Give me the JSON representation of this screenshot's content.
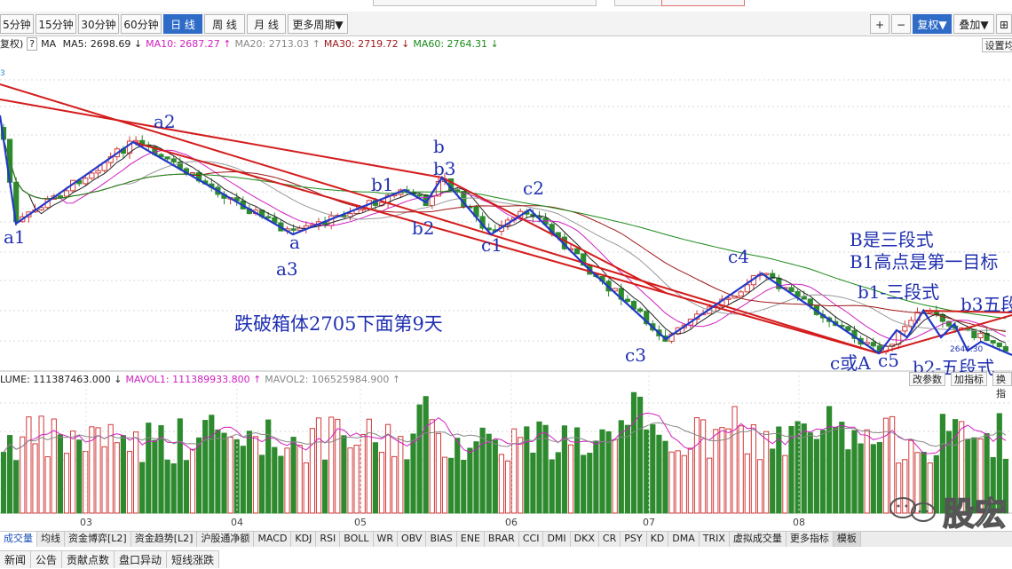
{
  "toolbar": {
    "periods": [
      "5分钟",
      "15分钟",
      "30分钟",
      "60分钟",
      "日 线",
      "周 线",
      "月 线",
      "更多周期▼"
    ],
    "active_period": "日 线",
    "right_buttons": [
      "+",
      "−",
      "复权▼",
      "叠加▼",
      "⊞"
    ]
  },
  "ma_legend": {
    "prefix": "复权)",
    "help": "?",
    "ma_label": "MA",
    "items": [
      {
        "text": "MA5: 2698.69",
        "arrow": "↓",
        "color": "#222222"
      },
      {
        "text": "MA10: 2687.27",
        "arrow": "↑",
        "color": "#d020c0"
      },
      {
        "text": "MA20: 2713.03",
        "arrow": "↑",
        "color": "#888888"
      },
      {
        "text": "MA30: 2719.72",
        "arrow": "↓",
        "color": "#a01818"
      },
      {
        "text": "MA60: 2764.31",
        "arrow": "↓",
        "color": "#1a8a1a"
      }
    ],
    "settings": "设置均"
  },
  "vol_legend": {
    "items": [
      {
        "text": "LUME: 111387463.000",
        "arrow": "↓",
        "color": "#222222"
      },
      {
        "text": "MAVOL1: 111389933.800",
        "arrow": "↑",
        "color": "#d020c0"
      },
      {
        "text": "MAVOL2: 106525984.900",
        "arrow": "↑",
        "color": "#888888"
      }
    ],
    "buttons": [
      "改参数",
      "加指标",
      "换指"
    ]
  },
  "x_axis_months": [
    "03",
    "04",
    "05",
    "06",
    "07",
    "08"
  ],
  "annotations": {
    "a1": "a1",
    "a2": "a2",
    "a": "a",
    "a3": "a3",
    "b1": "b1",
    "b": "b",
    "b3": "b3",
    "b2": "b2",
    "c1": "c1",
    "c2": "c2",
    "c3": "c3",
    "c4": "c4",
    "cA": "c或A",
    "c5": "c5",
    "box_note": "跌破箱体2705下面第9天",
    "note1": "B是三段式",
    "note2": "B1高点是第一目标",
    "note3": "b1-三段式",
    "note4": "b3五段",
    "note5": "b2-五段式",
    "small_price": "2644.30",
    "corner_num": "3"
  },
  "indicator_tabs": [
    "成交量",
    "均线",
    "资金博弈[L2]",
    "资金趋势[L2]",
    "沪股通净额",
    "MACD",
    "KDJ",
    "RSI",
    "BOLL",
    "WR",
    "OBV",
    "BIAS",
    "ENE",
    "BRAR",
    "CCI",
    "DMI",
    "DKX",
    "CR",
    "PSY",
    "KD",
    "DMA",
    "TRIX",
    "虚拟成交量",
    "更多指标",
    "模板"
  ],
  "info_tabs": [
    "新闻",
    "公告",
    "贡献点数",
    "盘口异动",
    "短线涨跌"
  ],
  "watermark": "股宏",
  "colors": {
    "up": "#d23a3a",
    "down": "#2e8a2e",
    "trend": "#d41c1c",
    "wave": "#2238c8",
    "annotation": "#1f2fb0"
  }
}
